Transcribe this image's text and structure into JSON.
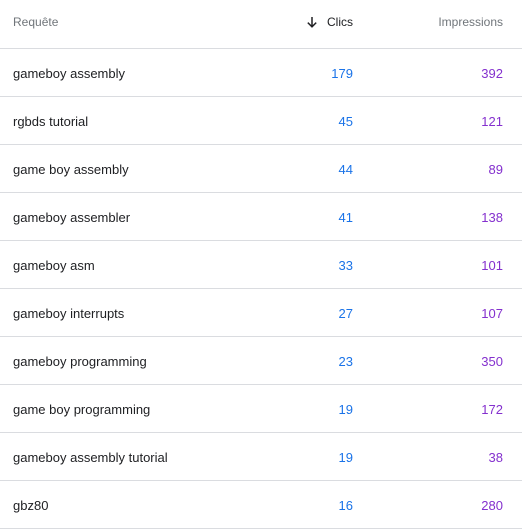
{
  "header": {
    "query_label": "Requête",
    "clicks_label": "Clics",
    "impressions_label": "Impressions",
    "sort_icon": "arrow-down-icon"
  },
  "colors": {
    "clicks": "#1a73e8",
    "impressions": "#8430ce",
    "divider": "#dadce0"
  },
  "rows": [
    {
      "query": "gameboy assembly",
      "clicks": "179",
      "impressions": "392"
    },
    {
      "query": "rgbds tutorial",
      "clicks": "45",
      "impressions": "121"
    },
    {
      "query": "game boy assembly",
      "clicks": "44",
      "impressions": "89"
    },
    {
      "query": "gameboy assembler",
      "clicks": "41",
      "impressions": "138"
    },
    {
      "query": "gameboy asm",
      "clicks": "33",
      "impressions": "101"
    },
    {
      "query": "gameboy interrupts",
      "clicks": "27",
      "impressions": "107"
    },
    {
      "query": "gameboy programming",
      "clicks": "23",
      "impressions": "350"
    },
    {
      "query": "game boy programming",
      "clicks": "19",
      "impressions": "172"
    },
    {
      "query": "gameboy assembly tutorial",
      "clicks": "19",
      "impressions": "38"
    },
    {
      "query": "gbz80",
      "clicks": "16",
      "impressions": "280"
    }
  ]
}
